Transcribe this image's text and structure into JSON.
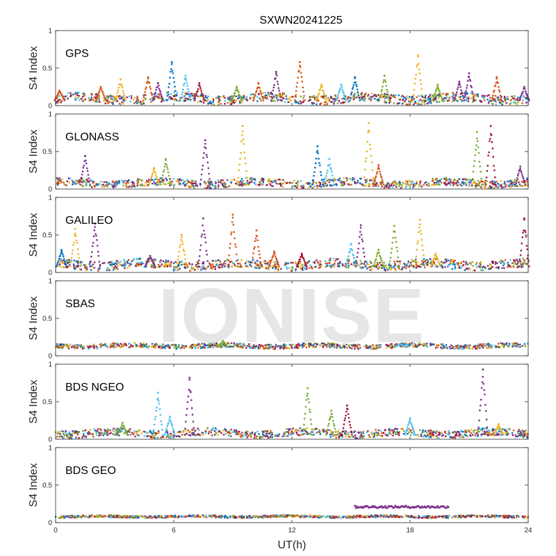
{
  "chart_data": {
    "type": "scatter",
    "title": "SXWN20241225",
    "xlabel": "UT(h)",
    "ylabel": "S4 Index",
    "xlim": [
      0,
      24
    ],
    "xticks": [
      0,
      6,
      12,
      18,
      24
    ],
    "ylim": [
      0,
      1
    ],
    "yticks": [
      0,
      0.5,
      1
    ],
    "grid": false,
    "legend": "none",
    "watermark": "IONISE",
    "series_colors": [
      "#0072bd",
      "#d95319",
      "#edb120",
      "#7e2f8e",
      "#77ac30",
      "#4dbeee",
      "#a2142f"
    ],
    "panels": [
      {
        "name": "GPS",
        "baseline": 0.07,
        "noise": 0.06,
        "spikes": [
          {
            "x": 0.2,
            "y": 0.2,
            "series": 1
          },
          {
            "x": 2.3,
            "y": 0.25,
            "series": 1
          },
          {
            "x": 3.3,
            "y": 0.35,
            "series": 2
          },
          {
            "x": 4.7,
            "y": 0.38,
            "series": 1
          },
          {
            "x": 5.2,
            "y": 0.3,
            "series": 3
          },
          {
            "x": 5.9,
            "y": 0.58,
            "series": 0
          },
          {
            "x": 6.6,
            "y": 0.4,
            "series": 5
          },
          {
            "x": 7.3,
            "y": 0.3,
            "series": 6
          },
          {
            "x": 9.2,
            "y": 0.25,
            "series": 4
          },
          {
            "x": 10.3,
            "y": 0.3,
            "series": 1
          },
          {
            "x": 11.2,
            "y": 0.45,
            "series": 3
          },
          {
            "x": 12.4,
            "y": 0.58,
            "series": 1
          },
          {
            "x": 13.5,
            "y": 0.28,
            "series": 2
          },
          {
            "x": 14.5,
            "y": 0.28,
            "series": 5
          },
          {
            "x": 15.2,
            "y": 0.38,
            "series": 0
          },
          {
            "x": 16.7,
            "y": 0.4,
            "series": 4
          },
          {
            "x": 18.4,
            "y": 0.67,
            "series": 2
          },
          {
            "x": 19.4,
            "y": 0.28,
            "series": 4
          },
          {
            "x": 20.5,
            "y": 0.32,
            "series": 3
          },
          {
            "x": 21.0,
            "y": 0.43,
            "series": 3
          },
          {
            "x": 22.4,
            "y": 0.38,
            "series": 1
          },
          {
            "x": 23.8,
            "y": 0.25,
            "series": 3
          }
        ]
      },
      {
        "name": "GLONASS",
        "baseline": 0.06,
        "noise": 0.05,
        "spikes": [
          {
            "x": 1.5,
            "y": 0.44,
            "series": 3
          },
          {
            "x": 5.0,
            "y": 0.28,
            "series": 2
          },
          {
            "x": 5.6,
            "y": 0.4,
            "series": 4
          },
          {
            "x": 7.6,
            "y": 0.65,
            "series": 3
          },
          {
            "x": 9.5,
            "y": 0.84,
            "series": 2
          },
          {
            "x": 13.3,
            "y": 0.57,
            "series": 0
          },
          {
            "x": 13.9,
            "y": 0.4,
            "series": 5
          },
          {
            "x": 15.9,
            "y": 0.88,
            "series": 2
          },
          {
            "x": 16.4,
            "y": 0.32,
            "series": 1
          },
          {
            "x": 21.4,
            "y": 0.76,
            "series": 4
          },
          {
            "x": 22.1,
            "y": 0.84,
            "series": 6
          },
          {
            "x": 23.6,
            "y": 0.3,
            "series": 3
          }
        ]
      },
      {
        "name": "GALILEO",
        "baseline": 0.08,
        "noise": 0.06,
        "spikes": [
          {
            "x": 0.3,
            "y": 0.3,
            "series": 0
          },
          {
            "x": 1.0,
            "y": 0.58,
            "series": 2
          },
          {
            "x": 2.0,
            "y": 0.65,
            "series": 3
          },
          {
            "x": 4.8,
            "y": 0.22,
            "series": 3
          },
          {
            "x": 6.4,
            "y": 0.5,
            "series": 2
          },
          {
            "x": 7.5,
            "y": 0.72,
            "series": 3
          },
          {
            "x": 9.0,
            "y": 0.77,
            "series": 1
          },
          {
            "x": 10.2,
            "y": 0.56,
            "series": 1
          },
          {
            "x": 11.1,
            "y": 0.28,
            "series": 1
          },
          {
            "x": 12.5,
            "y": 0.25,
            "series": 6
          },
          {
            "x": 15.0,
            "y": 0.38,
            "series": 5
          },
          {
            "x": 15.5,
            "y": 0.63,
            "series": 3
          },
          {
            "x": 16.4,
            "y": 0.3,
            "series": 4
          },
          {
            "x": 17.2,
            "y": 0.62,
            "series": 4
          },
          {
            "x": 18.5,
            "y": 0.7,
            "series": 2
          },
          {
            "x": 19.3,
            "y": 0.25,
            "series": 2
          },
          {
            "x": 23.8,
            "y": 0.72,
            "series": 6
          }
        ]
      },
      {
        "name": "SBAS",
        "baseline": 0.12,
        "noise": 0.03,
        "spikes": [
          {
            "x": 8.5,
            "y": 0.2,
            "series": 4
          },
          {
            "x": 17.5,
            "y": 0.16,
            "series": 5
          }
        ]
      },
      {
        "name": "BDS NGEO",
        "baseline": 0.06,
        "noise": 0.05,
        "spikes": [
          {
            "x": 3.4,
            "y": 0.22,
            "series": 4
          },
          {
            "x": 5.2,
            "y": 0.62,
            "series": 5
          },
          {
            "x": 5.8,
            "y": 0.3,
            "series": 5
          },
          {
            "x": 6.8,
            "y": 0.82,
            "series": 3
          },
          {
            "x": 12.8,
            "y": 0.68,
            "series": 4
          },
          {
            "x": 14.0,
            "y": 0.38,
            "series": 4
          },
          {
            "x": 14.8,
            "y": 0.45,
            "series": 6
          },
          {
            "x": 18.0,
            "y": 0.28,
            "series": 5
          },
          {
            "x": 21.7,
            "y": 0.93,
            "series": 3
          },
          {
            "x": 22.5,
            "y": 0.2,
            "series": 2
          }
        ]
      },
      {
        "name": "BDS GEO",
        "baseline": 0.075,
        "noise": 0.015,
        "spikes": [],
        "segment": {
          "x_start": 15.2,
          "x_end": 20.0,
          "y": 0.21,
          "series": 3
        }
      }
    ]
  }
}
